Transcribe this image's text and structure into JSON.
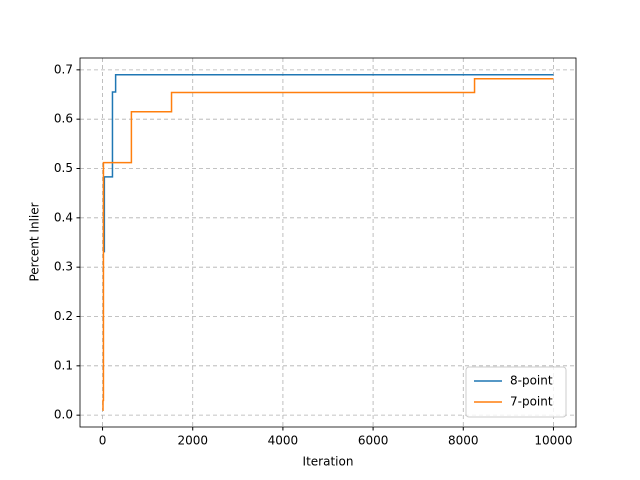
{
  "chart_data": {
    "type": "line",
    "drawstyle": "steps-post",
    "xlabel": "Iteration",
    "ylabel": "Percent Inlier",
    "series": [
      {
        "name": "8-point",
        "color": "#1f77b4",
        "x": [
          40,
          40,
          220,
          290,
          10000
        ],
        "values": [
          0.33,
          0.483,
          0.655,
          0.69,
          0.69
        ]
      },
      {
        "name": "7-point",
        "color": "#ff7f0e",
        "x": [
          0,
          10,
          20,
          640,
          1530,
          8250,
          10000
        ],
        "values": [
          0.01,
          0.03,
          0.512,
          0.615,
          0.654,
          0.682,
          0.682
        ]
      }
    ],
    "xlim": [
      -500,
      10500
    ],
    "ylim": [
      -0.024,
      0.724
    ],
    "xticks": [
      0,
      2000,
      4000,
      6000,
      8000,
      10000
    ],
    "yticks": [
      {
        "value": 0,
        "label": "0.0"
      },
      0.1,
      0.2,
      0.3,
      0.4,
      0.5,
      0.6,
      0.7
    ],
    "grid": true,
    "legend": "lower right"
  }
}
